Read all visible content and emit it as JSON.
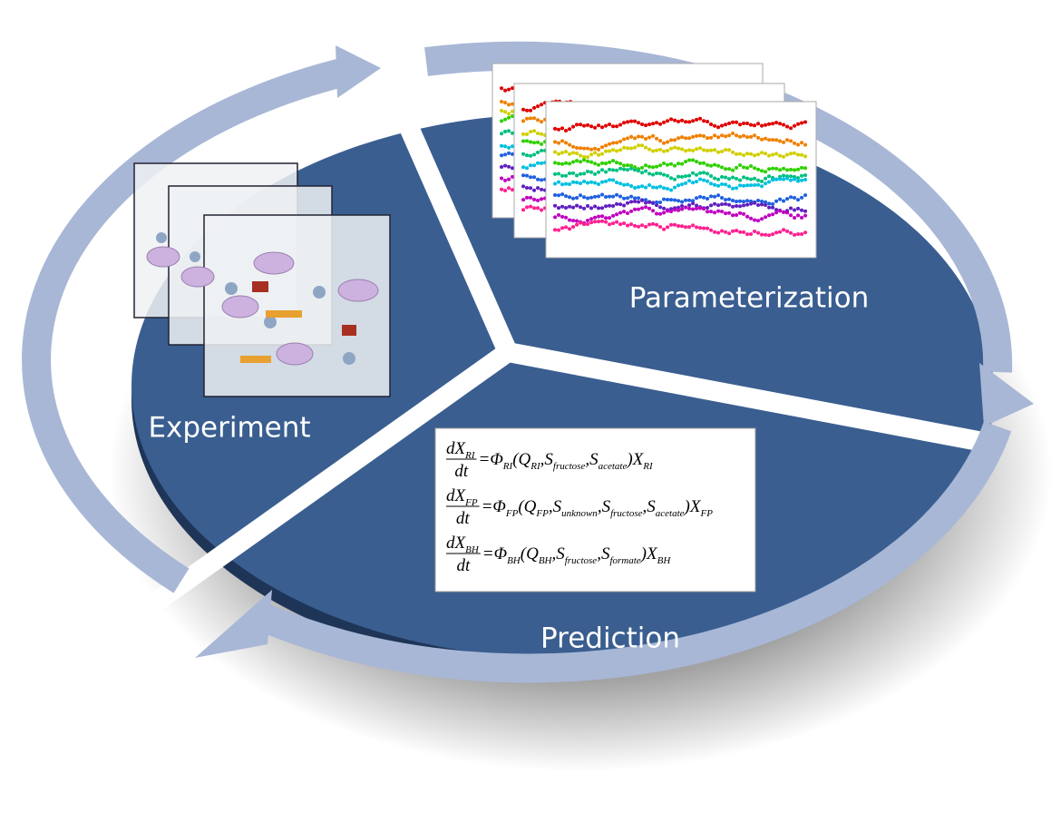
{
  "labels": {
    "experiment": "Experiment",
    "parameterization": "Parameterization",
    "prediction": "Prediction"
  },
  "equations": [
    {
      "numerator": [
        "dX",
        "RI"
      ],
      "denominator": "dt",
      "rhs": [
        [
          "=Φ",
          "RI"
        ],
        [
          "(Q",
          "RI"
        ],
        [
          ",S",
          "fructose"
        ],
        [
          ",S",
          "acetate"
        ],
        [
          ")X",
          "RI"
        ]
      ]
    },
    {
      "numerator": [
        "dX",
        "FP"
      ],
      "denominator": "dt",
      "rhs": [
        [
          "=Φ",
          "FP"
        ],
        [
          "(Q",
          "FP"
        ],
        [
          ",S",
          "unknown"
        ],
        [
          ",S",
          "fructose"
        ],
        [
          ",S",
          "acetate"
        ],
        [
          ")X",
          "FP"
        ]
      ]
    },
    {
      "numerator": [
        "dX",
        "BH"
      ],
      "denominator": "dt",
      "rhs": [
        [
          "=Φ",
          "BH"
        ],
        [
          "(Q",
          "BH"
        ],
        [
          ",S",
          "fructose"
        ],
        [
          ",S",
          "formate"
        ],
        [
          ")X",
          "BH"
        ]
      ]
    }
  ]
}
